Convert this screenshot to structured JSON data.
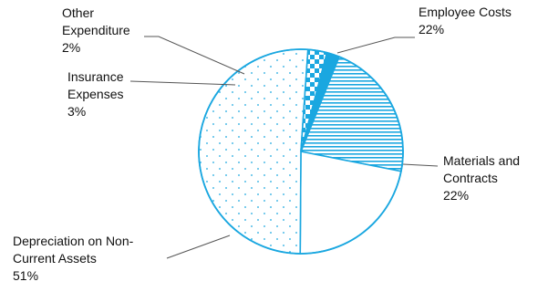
{
  "chart_data": {
    "type": "pie",
    "title": "",
    "slices": [
      {
        "label_lines": [
          "Employee Costs"
        ],
        "percent_text": "22%",
        "value": 22,
        "fill": "horizontal-stripes"
      },
      {
        "label_lines": [
          "Materials and",
          "Contracts"
        ],
        "percent_text": "22%",
        "value": 22,
        "fill": "solid-white"
      },
      {
        "label_lines": [
          "Depreciation on Non-",
          "Current Assets"
        ],
        "percent_text": "51%",
        "value": 51,
        "fill": "sparse-dots"
      },
      {
        "label_lines": [
          "Insurance",
          "Expenses"
        ],
        "percent_text": "3%",
        "value": 3,
        "fill": "checkerboard"
      },
      {
        "label_lines": [
          "Other",
          "Expenditure"
        ],
        "percent_text": "2%",
        "value": 2,
        "fill": "solid-blue"
      }
    ]
  },
  "colors": {
    "accent": "#1aa7e0",
    "leader": "#555555",
    "text": "#111111"
  }
}
